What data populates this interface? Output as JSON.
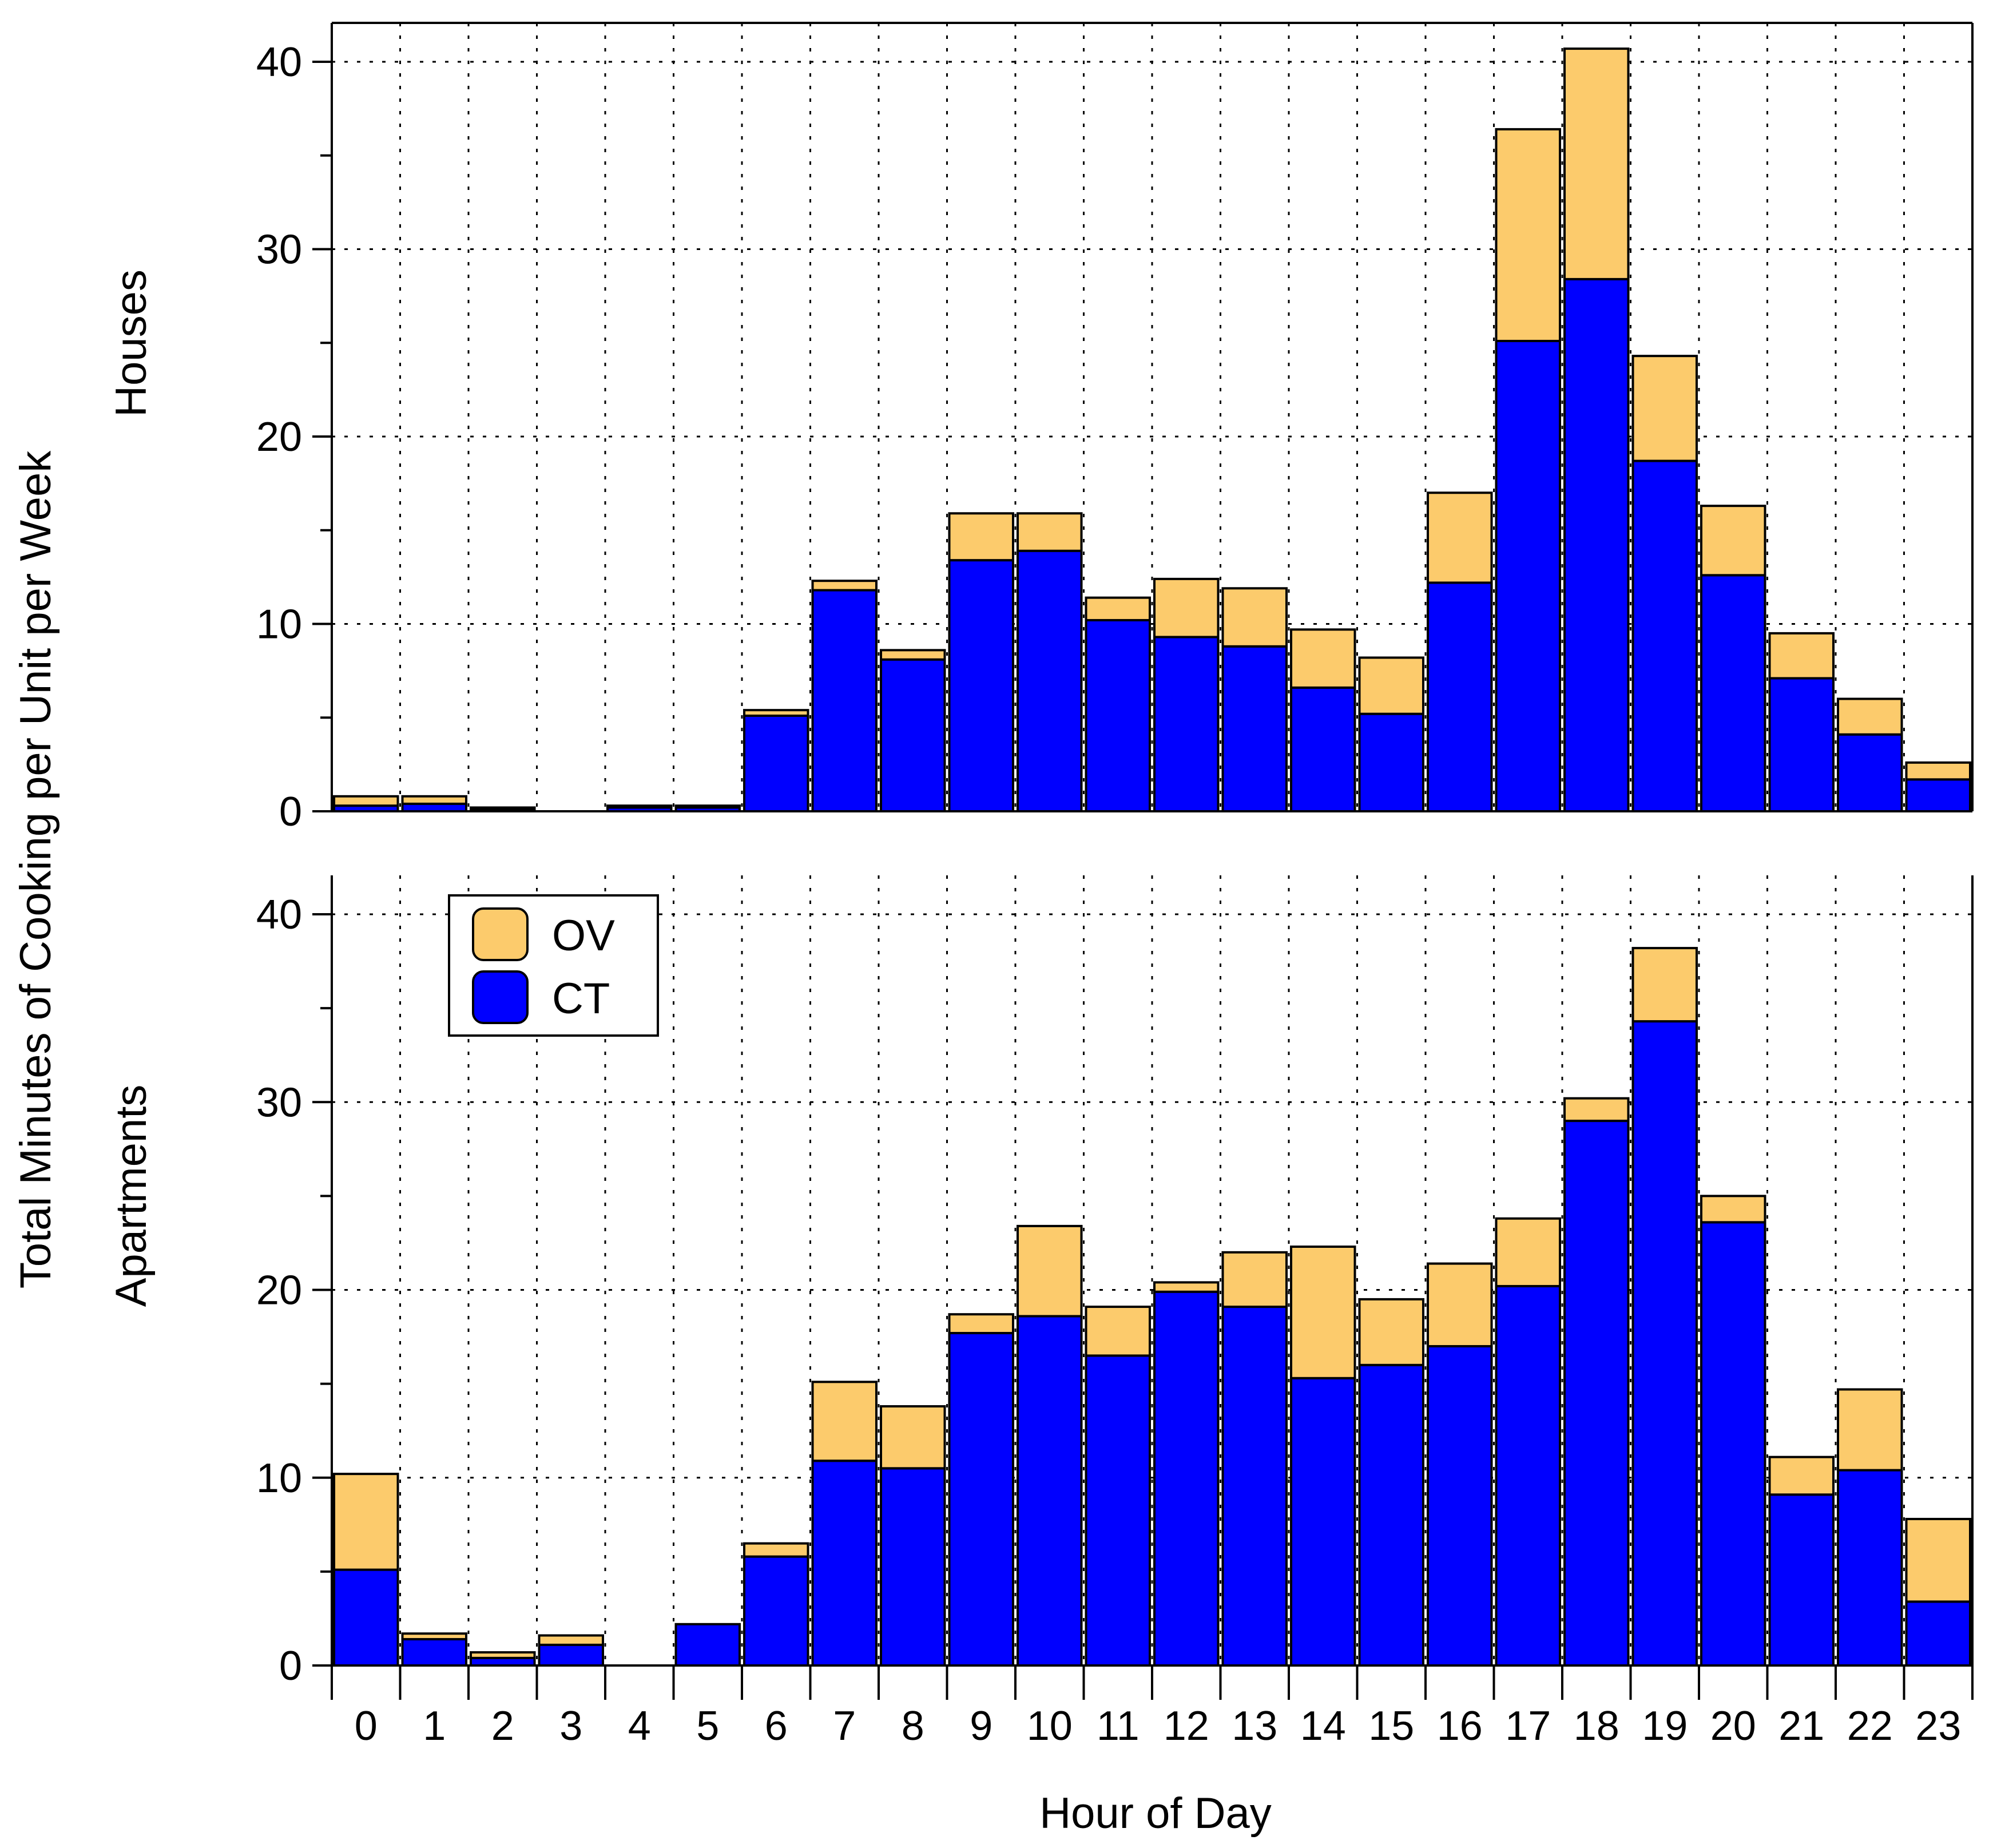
{
  "chart_data": {
    "type": "bar",
    "stacked": true,
    "categories": [
      "0",
      "1",
      "2",
      "3",
      "4",
      "5",
      "6",
      "7",
      "8",
      "9",
      "10",
      "11",
      "12",
      "13",
      "14",
      "15",
      "16",
      "17",
      "18",
      "19",
      "20",
      "21",
      "22",
      "23"
    ],
    "xlabel": "Hour of Day",
    "ylabel": "Total Minutes of Cooking per Unit per Week",
    "yticks": [
      0,
      10,
      20,
      30,
      40
    ],
    "ylim": [
      0,
      42
    ],
    "grid": true,
    "colors": {
      "CT": "#0000ff",
      "OV": "#fccb6c",
      "outline": "#000000"
    },
    "legend": {
      "location": "top-left of lower panel",
      "entries": [
        "OV",
        "CT"
      ]
    },
    "panels": [
      {
        "name": "Houses",
        "series": [
          {
            "name": "CT",
            "values": [
              0.3,
              0.4,
              0.1,
              0,
              0.2,
              0.2,
              5.1,
              11.8,
              8.1,
              13.4,
              13.9,
              10.2,
              9.3,
              8.8,
              6.6,
              5.2,
              12.2,
              25.1,
              28.4,
              18.7,
              12.6,
              7.1,
              4.1,
              1.7
            ]
          },
          {
            "name": "OV",
            "values": [
              0.5,
              0.4,
              0.1,
              0,
              0.1,
              0.1,
              0.3,
              0.5,
              0.5,
              2.5,
              2.0,
              1.2,
              3.1,
              3.1,
              3.1,
              3.0,
              4.8,
              11.3,
              12.3,
              5.6,
              3.7,
              2.4,
              1.9,
              0.9
            ]
          }
        ]
      },
      {
        "name": "Apartments",
        "series": [
          {
            "name": "CT",
            "values": [
              5.1,
              1.4,
              0.4,
              1.1,
              0,
              2.2,
              5.8,
              10.9,
              10.5,
              17.7,
              18.6,
              16.5,
              19.9,
              19.1,
              15.3,
              16.0,
              17.0,
              20.2,
              29.0,
              34.3,
              23.6,
              9.1,
              10.4,
              3.4
            ]
          },
          {
            "name": "OV",
            "values": [
              5.1,
              0.3,
              0.3,
              0.5,
              0,
              0,
              0.7,
              4.2,
              3.3,
              1.0,
              4.8,
              2.6,
              0.5,
              2.9,
              7.0,
              3.5,
              4.4,
              3.6,
              1.2,
              3.9,
              1.4,
              2.0,
              4.3,
              4.4
            ]
          }
        ]
      }
    ]
  }
}
